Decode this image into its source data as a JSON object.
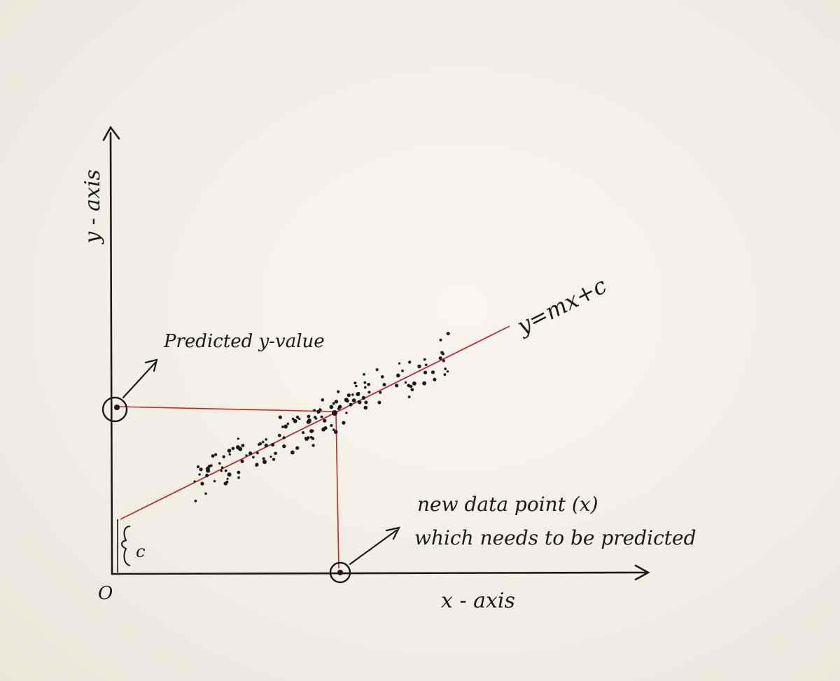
{
  "labels": {
    "y_axis": "y - axis",
    "x_axis": "x - axis",
    "origin": "O",
    "intercept": "c",
    "predicted_y": "Predicted y-value",
    "equation": "y=mx+c",
    "new_point_line1": "new data point (x)",
    "new_point_line2": "which needs to be predicted"
  },
  "colors": {
    "ink": "#1a1a1a",
    "regression_line": "#c0282e",
    "paper": "#f3f0e6"
  }
}
